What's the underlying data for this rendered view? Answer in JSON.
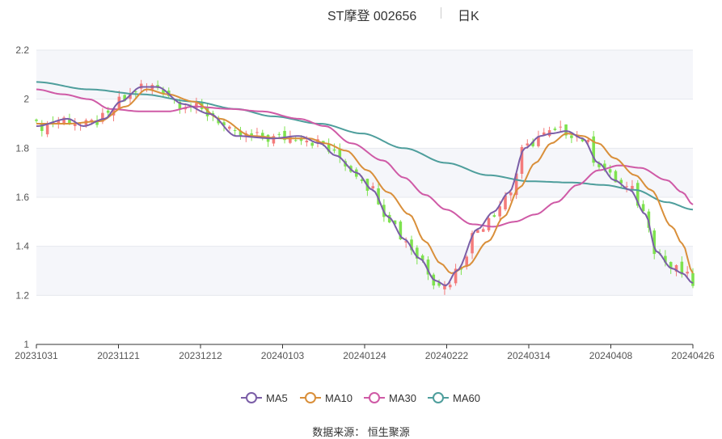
{
  "header": {
    "stock": "ST摩登 002656",
    "period": "日K"
  },
  "source": "数据来源： 恒生聚源",
  "colors": {
    "up": "#f47b7b",
    "down": "#7ee24f",
    "MA5": "#7b5ea7",
    "MA10": "#d98f3a",
    "MA30": "#cf5aa6",
    "MA60": "#4e9e9c"
  },
  "chart_data": {
    "type": "candlestick",
    "x_tick_labels": [
      "20231031",
      "20231121",
      "20231212",
      "20240103",
      "20240124",
      "20240222",
      "20240314",
      "20240408",
      "20240426"
    ],
    "y_ticks": [
      "1",
      "1.2",
      "1.4",
      "1.6",
      "1.8",
      "2",
      "2.2"
    ],
    "ylim": [
      1,
      2.2
    ],
    "n_candles": 120,
    "series_names": [
      "MA5",
      "MA10",
      "MA30",
      "MA60"
    ],
    "ma_anchors": {
      "MA5": [
        [
          0,
          1.89
        ],
        [
          6,
          1.92
        ],
        [
          9,
          1.89
        ],
        [
          13,
          1.92
        ],
        [
          16,
          1.99
        ],
        [
          20,
          2.05
        ],
        [
          23,
          2.05
        ],
        [
          28,
          1.98
        ],
        [
          33,
          1.94
        ],
        [
          38,
          1.85
        ],
        [
          45,
          1.84
        ],
        [
          50,
          1.85
        ],
        [
          54,
          1.82
        ],
        [
          57,
          1.77
        ],
        [
          61,
          1.7
        ],
        [
          64,
          1.63
        ],
        [
          67,
          1.52
        ],
        [
          70,
          1.43
        ],
        [
          73,
          1.35
        ],
        [
          76,
          1.26
        ],
        [
          78,
          1.24
        ],
        [
          80,
          1.3
        ],
        [
          84,
          1.47
        ],
        [
          87,
          1.54
        ],
        [
          90,
          1.62
        ],
        [
          93,
          1.8
        ],
        [
          96,
          1.85
        ],
        [
          98,
          1.86
        ],
        [
          101,
          1.87
        ],
        [
          104,
          1.84
        ],
        [
          107,
          1.74
        ],
        [
          110,
          1.67
        ],
        [
          113,
          1.63
        ],
        [
          116,
          1.53
        ],
        [
          118,
          1.38
        ],
        [
          121,
          1.31
        ],
        [
          123,
          1.29
        ],
        [
          125,
          1.25
        ]
      ],
      "MA10": [
        [
          0,
          1.9
        ],
        [
          6,
          1.9
        ],
        [
          12,
          1.91
        ],
        [
          17,
          1.97
        ],
        [
          21,
          2.04
        ],
        [
          25,
          2.02
        ],
        [
          30,
          1.99
        ],
        [
          35,
          1.92
        ],
        [
          41,
          1.85
        ],
        [
          47,
          1.84
        ],
        [
          52,
          1.84
        ],
        [
          55,
          1.82
        ],
        [
          59,
          1.79
        ],
        [
          63,
          1.71
        ],
        [
          67,
          1.62
        ],
        [
          71,
          1.53
        ],
        [
          74,
          1.42
        ],
        [
          77,
          1.33
        ],
        [
          79,
          1.29
        ],
        [
          82,
          1.32
        ],
        [
          86,
          1.42
        ],
        [
          89,
          1.52
        ],
        [
          92,
          1.64
        ],
        [
          95,
          1.74
        ],
        [
          98,
          1.82
        ],
        [
          101,
          1.86
        ],
        [
          104,
          1.85
        ],
        [
          107,
          1.82
        ],
        [
          110,
          1.76
        ],
        [
          114,
          1.69
        ],
        [
          117,
          1.63
        ],
        [
          121,
          1.48
        ],
        [
          123,
          1.41
        ],
        [
          125,
          1.29
        ]
      ],
      "MA30": [
        [
          0,
          2.04
        ],
        [
          5,
          2.02
        ],
        [
          10,
          2.0
        ],
        [
          14,
          1.96
        ],
        [
          20,
          1.95
        ],
        [
          25,
          1.95
        ],
        [
          30,
          1.97
        ],
        [
          37,
          1.96
        ],
        [
          43,
          1.95
        ],
        [
          50,
          1.92
        ],
        [
          55,
          1.89
        ],
        [
          60,
          1.82
        ],
        [
          66,
          1.75
        ],
        [
          70,
          1.68
        ],
        [
          74,
          1.61
        ],
        [
          78,
          1.55
        ],
        [
          83,
          1.49
        ],
        [
          87,
          1.48
        ],
        [
          91,
          1.5
        ],
        [
          95,
          1.53
        ],
        [
          99,
          1.58
        ],
        [
          103,
          1.65
        ],
        [
          107,
          1.71
        ],
        [
          111,
          1.73
        ],
        [
          115,
          1.72
        ],
        [
          120,
          1.67
        ],
        [
          123,
          1.62
        ],
        [
          125,
          1.57
        ]
      ],
      "MA60": [
        [
          0,
          2.07
        ],
        [
          10,
          2.04
        ],
        [
          20,
          2.02
        ],
        [
          30,
          1.99
        ],
        [
          38,
          1.96
        ],
        [
          45,
          1.93
        ],
        [
          54,
          1.9
        ],
        [
          62,
          1.86
        ],
        [
          70,
          1.8
        ],
        [
          78,
          1.74
        ],
        [
          86,
          1.69
        ],
        [
          94,
          1.665
        ],
        [
          102,
          1.66
        ],
        [
          108,
          1.65
        ],
        [
          114,
          1.63
        ],
        [
          120,
          1.58
        ],
        [
          125,
          1.55
        ]
      ]
    }
  }
}
